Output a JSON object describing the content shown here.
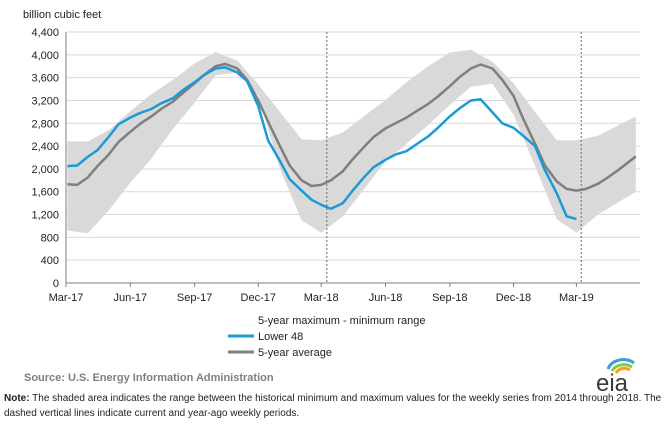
{
  "chart_data": {
    "type": "line",
    "ylabel": "billion cubic feet",
    "ylim": [
      0,
      4400
    ],
    "yticks": [
      0,
      400,
      800,
      1200,
      1600,
      2000,
      2400,
      2800,
      3200,
      3600,
      4000,
      4400
    ],
    "ytick_labels": [
      "0",
      "400",
      "800",
      "1,200",
      "1,600",
      "2,000",
      "2,400",
      "2,800",
      "3,200",
      "3,600",
      "4,000",
      "4,400"
    ],
    "x_start": "2017-03-01",
    "x_end": "2019-05-31",
    "xticks": [
      {
        "date": "2017-03-01",
        "label": "Mar-17"
      },
      {
        "date": "2017-06-01",
        "label": "Jun-17"
      },
      {
        "date": "2017-09-01",
        "label": "Sep-17"
      },
      {
        "date": "2017-12-01",
        "label": "Dec-17"
      },
      {
        "date": "2018-03-01",
        "label": "Mar-18"
      },
      {
        "date": "2018-06-01",
        "label": "Jun-18"
      },
      {
        "date": "2018-09-01",
        "label": "Sep-18"
      },
      {
        "date": "2018-12-01",
        "label": "Dec-18"
      },
      {
        "date": "2019-03-01",
        "label": "Mar-19"
      }
    ],
    "grid": "horizontal",
    "reference_lines": [
      {
        "date": "2018-03-09",
        "style": "dashed"
      },
      {
        "date": "2019-03-08",
        "style": "dashed"
      }
    ],
    "range_band": {
      "name": "5-year maximum - minimum range",
      "color": "#d9d9d9",
      "x": [
        "2017-03-03",
        "2017-04-01",
        "2017-05-01",
        "2017-06-01",
        "2017-07-01",
        "2017-08-01",
        "2017-09-01",
        "2017-10-01",
        "2017-11-01",
        "2017-12-01",
        "2018-01-01",
        "2018-02-01",
        "2018-03-01",
        "2018-04-01",
        "2018-05-01",
        "2018-06-01",
        "2018-07-01",
        "2018-08-01",
        "2018-09-01",
        "2018-10-01",
        "2018-11-01",
        "2018-12-01",
        "2019-01-01",
        "2019-02-01",
        "2019-03-01",
        "2019-04-01",
        "2019-05-25"
      ],
      "upper": [
        2480,
        2480,
        2680,
        3010,
        3310,
        3560,
        3850,
        4050,
        3900,
        3480,
        3000,
        2520,
        2500,
        2640,
        2920,
        3210,
        3520,
        3800,
        4040,
        4090,
        3880,
        3500,
        3000,
        2500,
        2500,
        2580,
        2920
      ],
      "lower": [
        920,
        870,
        1270,
        1760,
        2180,
        2700,
        3160,
        3640,
        3690,
        3280,
        2000,
        1100,
        880,
        1170,
        1640,
        2130,
        2440,
        2770,
        3120,
        3440,
        3490,
        2950,
        2050,
        1120,
        880,
        1200,
        1600
      ]
    },
    "series": [
      {
        "name": "Lower 48",
        "color": "#1c9ad6",
        "x": [
          "2017-03-03",
          "2017-03-17",
          "2017-04-01",
          "2017-04-15",
          "2017-05-01",
          "2017-05-15",
          "2017-06-01",
          "2017-06-15",
          "2017-07-01",
          "2017-07-15",
          "2017-08-01",
          "2017-08-15",
          "2017-09-01",
          "2017-09-15",
          "2017-10-01",
          "2017-10-15",
          "2017-11-01",
          "2017-11-15",
          "2017-12-01",
          "2017-12-15",
          "2018-01-01",
          "2018-01-15",
          "2018-02-01",
          "2018-02-15",
          "2018-03-01",
          "2018-03-15",
          "2018-04-01",
          "2018-04-15",
          "2018-05-01",
          "2018-05-15",
          "2018-06-01",
          "2018-06-15",
          "2018-07-01",
          "2018-07-15",
          "2018-08-01",
          "2018-08-15",
          "2018-09-01",
          "2018-09-15",
          "2018-10-01",
          "2018-10-15",
          "2018-11-01",
          "2018-11-15",
          "2018-12-01",
          "2018-12-15",
          "2019-01-01",
          "2019-01-15",
          "2019-02-01",
          "2019-02-15",
          "2019-03-01"
        ],
        "values": [
          2050,
          2060,
          2210,
          2330,
          2560,
          2780,
          2900,
          2980,
          3050,
          3150,
          3240,
          3380,
          3520,
          3650,
          3760,
          3780,
          3690,
          3540,
          3100,
          2500,
          2140,
          1820,
          1620,
          1460,
          1370,
          1300,
          1400,
          1620,
          1850,
          2030,
          2160,
          2250,
          2310,
          2430,
          2570,
          2720,
          2920,
          3060,
          3200,
          3220,
          2990,
          2800,
          2720,
          2580,
          2400,
          1980,
          1570,
          1170,
          1120
        ]
      },
      {
        "name": "5-year average",
        "color": "#7f7f7f",
        "x": [
          "2017-03-03",
          "2017-03-17",
          "2017-04-01",
          "2017-04-15",
          "2017-05-01",
          "2017-05-15",
          "2017-06-01",
          "2017-06-15",
          "2017-07-01",
          "2017-07-15",
          "2017-08-01",
          "2017-08-15",
          "2017-09-01",
          "2017-09-15",
          "2017-10-01",
          "2017-10-15",
          "2017-11-01",
          "2017-11-15",
          "2017-12-01",
          "2017-12-15",
          "2018-01-01",
          "2018-01-15",
          "2018-02-01",
          "2018-02-15",
          "2018-03-01",
          "2018-03-15",
          "2018-04-01",
          "2018-04-15",
          "2018-05-01",
          "2018-05-15",
          "2018-06-01",
          "2018-06-15",
          "2018-07-01",
          "2018-07-15",
          "2018-08-01",
          "2018-08-15",
          "2018-09-01",
          "2018-09-15",
          "2018-10-01",
          "2018-10-15",
          "2018-11-01",
          "2018-11-15",
          "2018-12-01",
          "2018-12-15",
          "2019-01-01",
          "2019-01-15",
          "2019-02-01",
          "2019-02-15",
          "2019-03-01",
          "2019-03-15",
          "2019-04-01",
          "2019-04-15",
          "2019-05-01",
          "2019-05-25"
        ],
        "values": [
          1730,
          1720,
          1850,
          2050,
          2250,
          2470,
          2650,
          2790,
          2920,
          3050,
          3180,
          3330,
          3500,
          3650,
          3800,
          3840,
          3760,
          3560,
          3200,
          2830,
          2400,
          2060,
          1800,
          1700,
          1720,
          1800,
          1960,
          2170,
          2380,
          2560,
          2710,
          2800,
          2900,
          3010,
          3140,
          3270,
          3450,
          3610,
          3760,
          3830,
          3760,
          3560,
          3280,
          2880,
          2440,
          2060,
          1780,
          1650,
          1620,
          1650,
          1740,
          1850,
          1990,
          2220
        ]
      }
    ],
    "legend": [
      {
        "label": "5-year maximum - minimum range",
        "kind": "band"
      },
      {
        "label": "Lower 48",
        "kind": "line",
        "color": "#1c9ad6"
      },
      {
        "label": "5-year average",
        "kind": "line",
        "color": "#7f7f7f"
      }
    ],
    "legend_position": "bottom-center"
  },
  "source": "Source:  U.S. Energy Information Administration",
  "note_label": "Note:",
  "note_text": " The shaded area indicates the range between the historical minimum and maximum values for the weekly series from 2014 through 2018. The dashed vertical lines indicate current and year-ago weekly periods.",
  "logo_text": "eia"
}
